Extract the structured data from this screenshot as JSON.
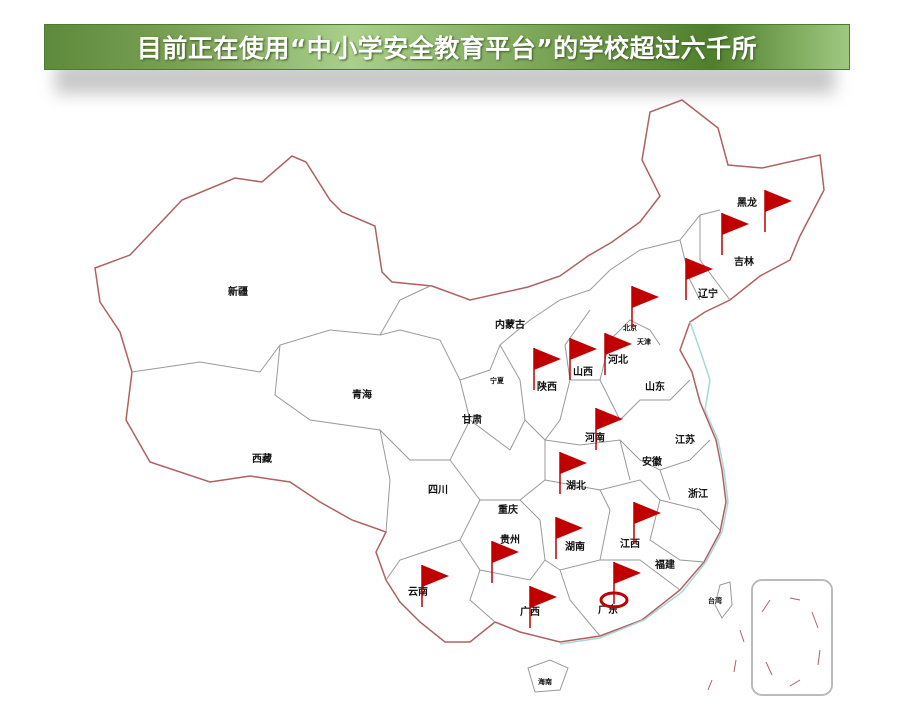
{
  "title": "目前正在使用“中小学安全教育平台”的学校超过六千所",
  "colors": {
    "flag": "#c00000",
    "border": "#b06060",
    "inner_border": "#999999",
    "coast": "#a8d8d8",
    "banner": "#6f9b4a"
  },
  "provinces": {
    "xinjiang": "新疆",
    "xizang": "西藏",
    "qinghai": "青海",
    "gansu": "甘肃",
    "neimenggu": "内蒙古",
    "ningxia": "宁夏",
    "shaanxi": "陕西",
    "shanxi": "山西",
    "hebei": "河北",
    "beijing": "北京",
    "tianjin": "天津",
    "shandong": "山东",
    "henan": "河南",
    "sichuan": "四川",
    "chongqing": "重庆",
    "hubei": "湖北",
    "anhui": "安徽",
    "jiangsu": "江苏",
    "zhejiang": "浙江",
    "guizhou": "贵州",
    "hunan": "湖南",
    "jiangxi": "江西",
    "fujian": "福建",
    "yunnan": "云南",
    "guangxi": "广西",
    "guangdong": "广东",
    "hainan": "海南",
    "taiwan": "台湾",
    "heilongjiang": "黑龙",
    "jilin": "吉林",
    "liaoning": "辽宁"
  },
  "flags": [
    "heilongjiang",
    "jilin",
    "liaoning",
    "beijing",
    "shaanxi",
    "shanxi",
    "hebei",
    "henan",
    "hubei",
    "hunan",
    "jiangxi",
    "guizhou",
    "yunnan",
    "guangxi",
    "guangdong"
  ],
  "highlight": "guangdong"
}
